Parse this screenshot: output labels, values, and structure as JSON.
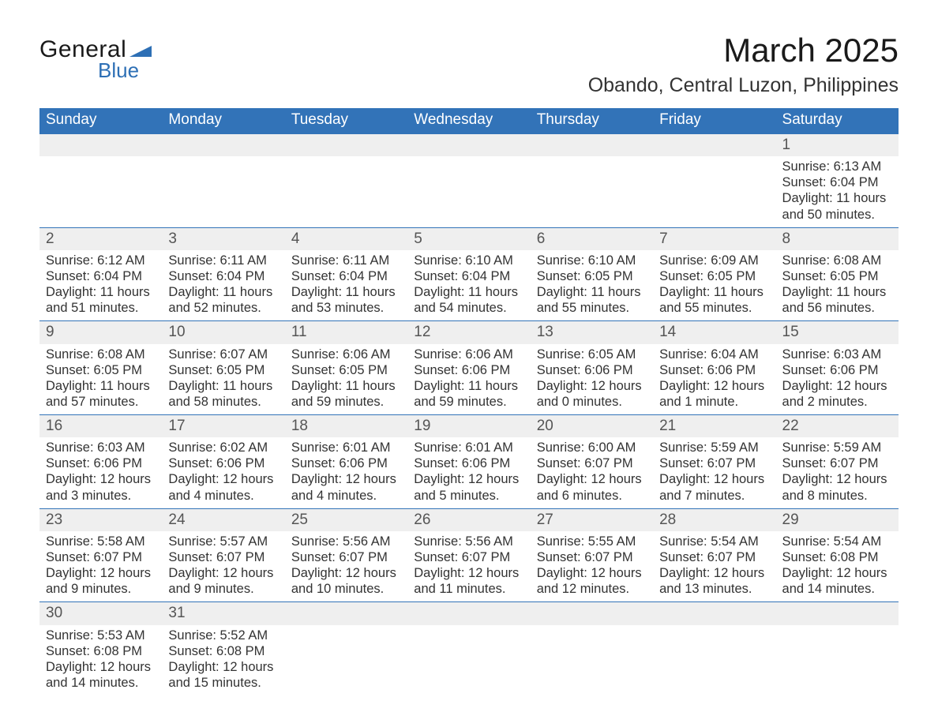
{
  "logo": {
    "text_general": "General",
    "text_blue": "Blue",
    "flag_color": "#2d6fb5"
  },
  "title": "March 2025",
  "location": "Obando, Central Luzon, Philippines",
  "colors": {
    "header_bg": "#3273b8",
    "header_text": "#ffffff",
    "daynum_bg": "#efefef",
    "row_border": "#3273b8",
    "body_text": "#333333",
    "page_bg": "#ffffff"
  },
  "typography": {
    "title_fontsize_pt": 32,
    "location_fontsize_pt": 19,
    "dayhead_fontsize_pt": 14,
    "cell_fontsize_pt": 12
  },
  "day_headers": [
    "Sunday",
    "Monday",
    "Tuesday",
    "Wednesday",
    "Thursday",
    "Friday",
    "Saturday"
  ],
  "weeks": [
    [
      null,
      null,
      null,
      null,
      null,
      null,
      {
        "n": "1",
        "sunrise": "Sunrise: 6:13 AM",
        "sunset": "Sunset: 6:04 PM",
        "daylight1": "Daylight: 11 hours",
        "daylight2": "and 50 minutes."
      }
    ],
    [
      {
        "n": "2",
        "sunrise": "Sunrise: 6:12 AM",
        "sunset": "Sunset: 6:04 PM",
        "daylight1": "Daylight: 11 hours",
        "daylight2": "and 51 minutes."
      },
      {
        "n": "3",
        "sunrise": "Sunrise: 6:11 AM",
        "sunset": "Sunset: 6:04 PM",
        "daylight1": "Daylight: 11 hours",
        "daylight2": "and 52 minutes."
      },
      {
        "n": "4",
        "sunrise": "Sunrise: 6:11 AM",
        "sunset": "Sunset: 6:04 PM",
        "daylight1": "Daylight: 11 hours",
        "daylight2": "and 53 minutes."
      },
      {
        "n": "5",
        "sunrise": "Sunrise: 6:10 AM",
        "sunset": "Sunset: 6:04 PM",
        "daylight1": "Daylight: 11 hours",
        "daylight2": "and 54 minutes."
      },
      {
        "n": "6",
        "sunrise": "Sunrise: 6:10 AM",
        "sunset": "Sunset: 6:05 PM",
        "daylight1": "Daylight: 11 hours",
        "daylight2": "and 55 minutes."
      },
      {
        "n": "7",
        "sunrise": "Sunrise: 6:09 AM",
        "sunset": "Sunset: 6:05 PM",
        "daylight1": "Daylight: 11 hours",
        "daylight2": "and 55 minutes."
      },
      {
        "n": "8",
        "sunrise": "Sunrise: 6:08 AM",
        "sunset": "Sunset: 6:05 PM",
        "daylight1": "Daylight: 11 hours",
        "daylight2": "and 56 minutes."
      }
    ],
    [
      {
        "n": "9",
        "sunrise": "Sunrise: 6:08 AM",
        "sunset": "Sunset: 6:05 PM",
        "daylight1": "Daylight: 11 hours",
        "daylight2": "and 57 minutes."
      },
      {
        "n": "10",
        "sunrise": "Sunrise: 6:07 AM",
        "sunset": "Sunset: 6:05 PM",
        "daylight1": "Daylight: 11 hours",
        "daylight2": "and 58 minutes."
      },
      {
        "n": "11",
        "sunrise": "Sunrise: 6:06 AM",
        "sunset": "Sunset: 6:05 PM",
        "daylight1": "Daylight: 11 hours",
        "daylight2": "and 59 minutes."
      },
      {
        "n": "12",
        "sunrise": "Sunrise: 6:06 AM",
        "sunset": "Sunset: 6:06 PM",
        "daylight1": "Daylight: 11 hours",
        "daylight2": "and 59 minutes."
      },
      {
        "n": "13",
        "sunrise": "Sunrise: 6:05 AM",
        "sunset": "Sunset: 6:06 PM",
        "daylight1": "Daylight: 12 hours",
        "daylight2": "and 0 minutes."
      },
      {
        "n": "14",
        "sunrise": "Sunrise: 6:04 AM",
        "sunset": "Sunset: 6:06 PM",
        "daylight1": "Daylight: 12 hours",
        "daylight2": "and 1 minute."
      },
      {
        "n": "15",
        "sunrise": "Sunrise: 6:03 AM",
        "sunset": "Sunset: 6:06 PM",
        "daylight1": "Daylight: 12 hours",
        "daylight2": "and 2 minutes."
      }
    ],
    [
      {
        "n": "16",
        "sunrise": "Sunrise: 6:03 AM",
        "sunset": "Sunset: 6:06 PM",
        "daylight1": "Daylight: 12 hours",
        "daylight2": "and 3 minutes."
      },
      {
        "n": "17",
        "sunrise": "Sunrise: 6:02 AM",
        "sunset": "Sunset: 6:06 PM",
        "daylight1": "Daylight: 12 hours",
        "daylight2": "and 4 minutes."
      },
      {
        "n": "18",
        "sunrise": "Sunrise: 6:01 AM",
        "sunset": "Sunset: 6:06 PM",
        "daylight1": "Daylight: 12 hours",
        "daylight2": "and 4 minutes."
      },
      {
        "n": "19",
        "sunrise": "Sunrise: 6:01 AM",
        "sunset": "Sunset: 6:06 PM",
        "daylight1": "Daylight: 12 hours",
        "daylight2": "and 5 minutes."
      },
      {
        "n": "20",
        "sunrise": "Sunrise: 6:00 AM",
        "sunset": "Sunset: 6:07 PM",
        "daylight1": "Daylight: 12 hours",
        "daylight2": "and 6 minutes."
      },
      {
        "n": "21",
        "sunrise": "Sunrise: 5:59 AM",
        "sunset": "Sunset: 6:07 PM",
        "daylight1": "Daylight: 12 hours",
        "daylight2": "and 7 minutes."
      },
      {
        "n": "22",
        "sunrise": "Sunrise: 5:59 AM",
        "sunset": "Sunset: 6:07 PM",
        "daylight1": "Daylight: 12 hours",
        "daylight2": "and 8 minutes."
      }
    ],
    [
      {
        "n": "23",
        "sunrise": "Sunrise: 5:58 AM",
        "sunset": "Sunset: 6:07 PM",
        "daylight1": "Daylight: 12 hours",
        "daylight2": "and 9 minutes."
      },
      {
        "n": "24",
        "sunrise": "Sunrise: 5:57 AM",
        "sunset": "Sunset: 6:07 PM",
        "daylight1": "Daylight: 12 hours",
        "daylight2": "and 9 minutes."
      },
      {
        "n": "25",
        "sunrise": "Sunrise: 5:56 AM",
        "sunset": "Sunset: 6:07 PM",
        "daylight1": "Daylight: 12 hours",
        "daylight2": "and 10 minutes."
      },
      {
        "n": "26",
        "sunrise": "Sunrise: 5:56 AM",
        "sunset": "Sunset: 6:07 PM",
        "daylight1": "Daylight: 12 hours",
        "daylight2": "and 11 minutes."
      },
      {
        "n": "27",
        "sunrise": "Sunrise: 5:55 AM",
        "sunset": "Sunset: 6:07 PM",
        "daylight1": "Daylight: 12 hours",
        "daylight2": "and 12 minutes."
      },
      {
        "n": "28",
        "sunrise": "Sunrise: 5:54 AM",
        "sunset": "Sunset: 6:07 PM",
        "daylight1": "Daylight: 12 hours",
        "daylight2": "and 13 minutes."
      },
      {
        "n": "29",
        "sunrise": "Sunrise: 5:54 AM",
        "sunset": "Sunset: 6:08 PM",
        "daylight1": "Daylight: 12 hours",
        "daylight2": "and 14 minutes."
      }
    ],
    [
      {
        "n": "30",
        "sunrise": "Sunrise: 5:53 AM",
        "sunset": "Sunset: 6:08 PM",
        "daylight1": "Daylight: 12 hours",
        "daylight2": "and 14 minutes."
      },
      {
        "n": "31",
        "sunrise": "Sunrise: 5:52 AM",
        "sunset": "Sunset: 6:08 PM",
        "daylight1": "Daylight: 12 hours",
        "daylight2": "and 15 minutes."
      },
      null,
      null,
      null,
      null,
      null
    ]
  ]
}
